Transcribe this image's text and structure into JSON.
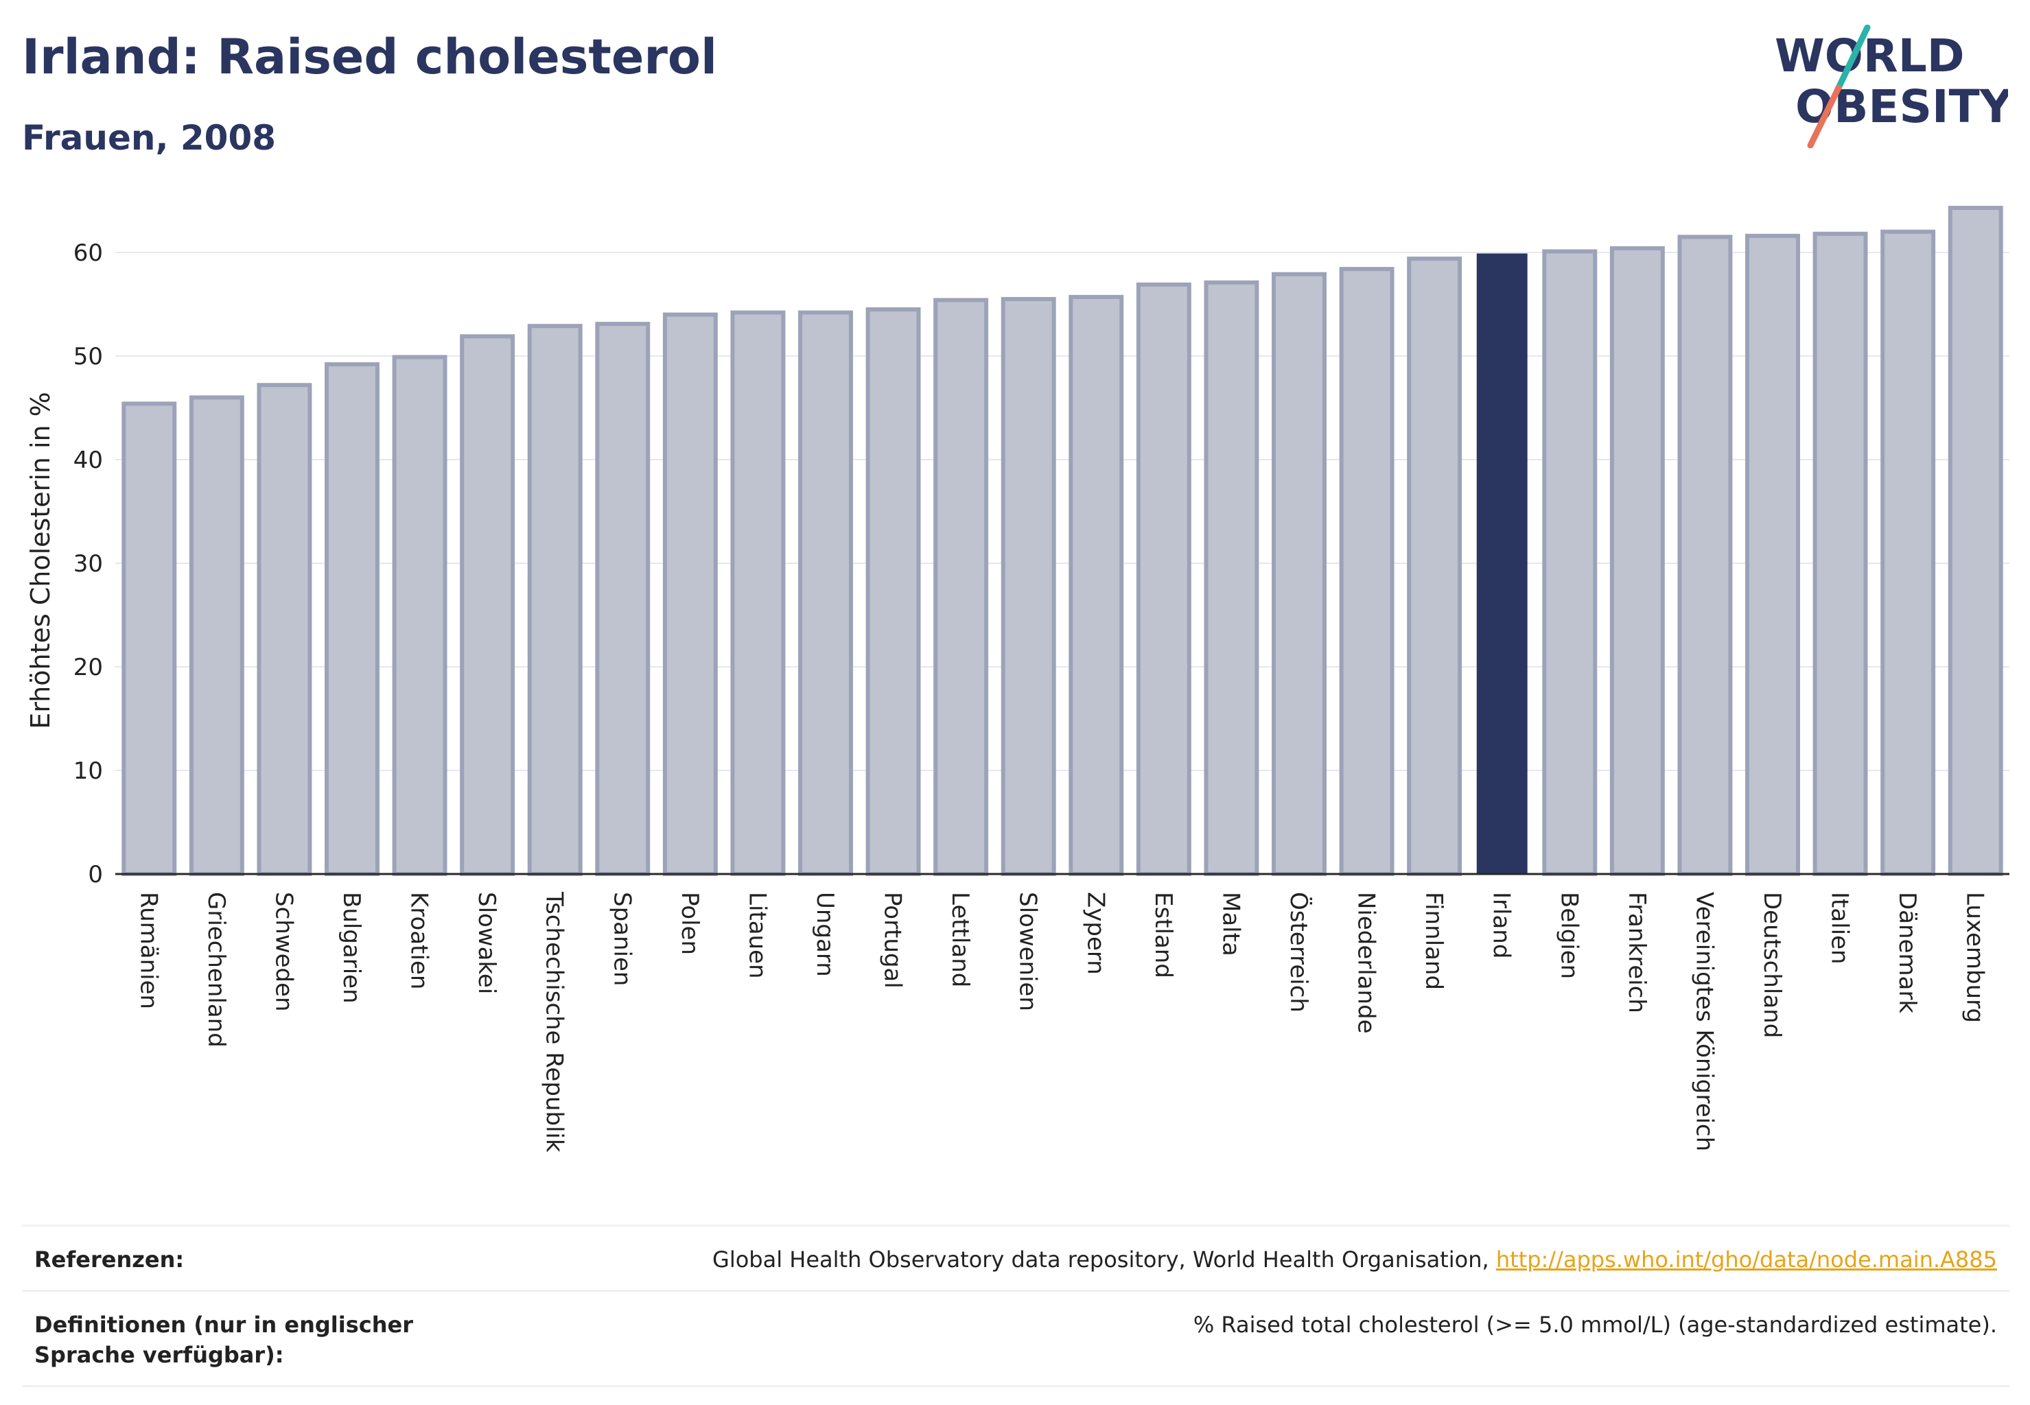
{
  "header": {
    "title": "Irland: Raised cholesterol",
    "subtitle": "Frauen, 2008"
  },
  "logo": {
    "line1": "WORLD",
    "line2": "OBESITY"
  },
  "colors": {
    "bar": "#bfc3cf",
    "bar_stroke": "#9ca3b8",
    "highlight": "#2a3560",
    "grid": "#e6e8ef",
    "logo_teal": "#2bb3a8",
    "logo_coral": "#e8735a"
  },
  "chart_data": {
    "type": "bar",
    "title": "Irland: Raised cholesterol",
    "subtitle": "Frauen, 2008",
    "xlabel": "",
    "ylabel": "Erhöhtes Cholesterin in %",
    "ylim": [
      0,
      64.5
    ],
    "yticks": [
      0,
      10,
      20,
      30,
      40,
      50,
      60
    ],
    "grid": true,
    "highlight": "Irland",
    "categories": [
      "Rumänien",
      "Griechenland",
      "Schweden",
      "Bulgarien",
      "Kroatien",
      "Slowakei",
      "Tschechische Republik",
      "Spanien",
      "Polen",
      "Litauen",
      "Ungarn",
      "Portugal",
      "Lettland",
      "Slowenien",
      "Zypern",
      "Estland",
      "Malta",
      "Österreich",
      "Niederlande",
      "Finnland",
      "Irland",
      "Belgien",
      "Frankreich",
      "Vereinigtes Königreich",
      "Deutschland",
      "Italien",
      "Dänemark",
      "Luxemburg"
    ],
    "values": [
      45.4,
      46.0,
      47.2,
      49.2,
      49.9,
      51.9,
      52.9,
      53.1,
      54.0,
      54.2,
      54.2,
      54.5,
      55.4,
      55.5,
      55.7,
      56.9,
      57.1,
      57.9,
      58.4,
      59.4,
      59.9,
      60.1,
      60.4,
      61.5,
      61.6,
      61.8,
      62.0,
      64.3
    ]
  },
  "references": {
    "ref_label": "Referenzen:",
    "ref_text": "Global Health Observatory data repository, World Health Organisation, ",
    "ref_link": "http://apps.who.int/gho/data/node.main.A885",
    "def_label": "Definitionen (nur in englischer Sprache verfügbar):",
    "def_text": "% Raised total cholesterol (>= 5.0 mmol/L) (age-standardized estimate)."
  }
}
